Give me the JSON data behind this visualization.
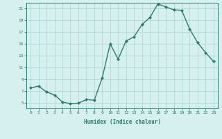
{
  "x": [
    0,
    1,
    2,
    3,
    4,
    5,
    6,
    7,
    8,
    9,
    10,
    11,
    12,
    13,
    14,
    15,
    16,
    17,
    18,
    19,
    20,
    21,
    22,
    23
  ],
  "y": [
    7.5,
    7.8,
    6.8,
    6.3,
    5.1,
    4.8,
    4.9,
    5.5,
    5.4,
    9.2,
    15.0,
    12.4,
    15.5,
    16.2,
    18.3,
    19.5,
    21.8,
    21.3,
    20.8,
    20.7,
    17.5,
    15.2,
    13.5,
    12.0
  ],
  "xlabel": "Humidex (Indice chaleur)",
  "ylabel": "",
  "xlim": [
    -0.5,
    23.5
  ],
  "ylim": [
    4,
    22
  ],
  "yticks": [
    5,
    7,
    9,
    11,
    13,
    15,
    17,
    19,
    21
  ],
  "xticks": [
    0,
    1,
    2,
    3,
    4,
    5,
    6,
    7,
    8,
    9,
    10,
    11,
    12,
    13,
    14,
    15,
    16,
    17,
    18,
    19,
    20,
    21,
    22,
    23
  ],
  "line_color": "#2d7a6e",
  "bg_color": "#d6f0f0",
  "grid_color": "#b0d8d8",
  "marker": "D",
  "marker_size": 2.0,
  "line_width": 1.0
}
